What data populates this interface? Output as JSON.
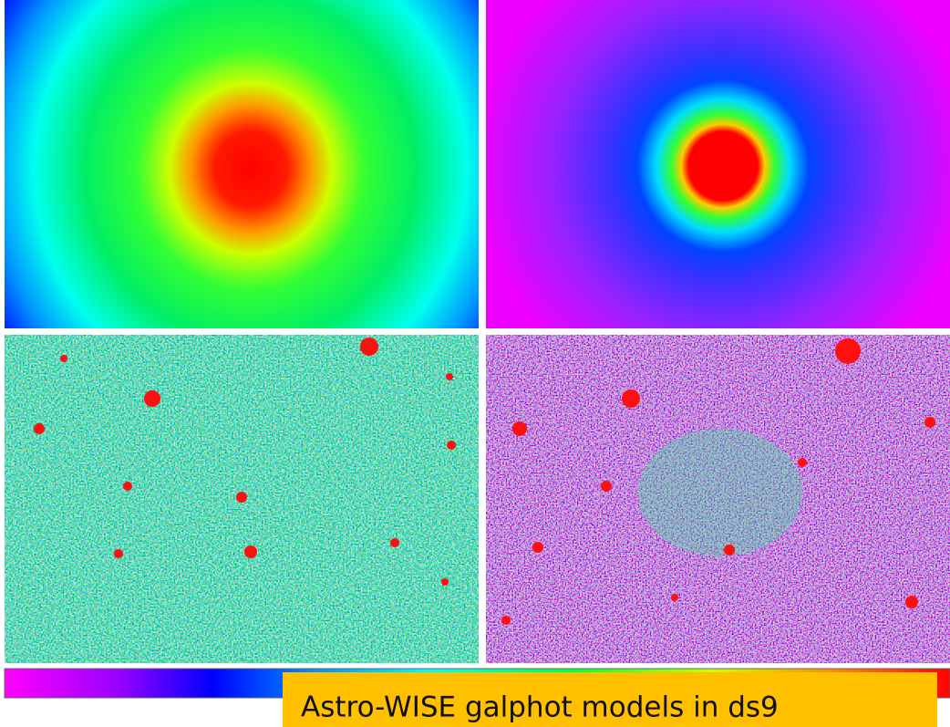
{
  "caption": "Astro-WISE galphot models in ds9"
}
